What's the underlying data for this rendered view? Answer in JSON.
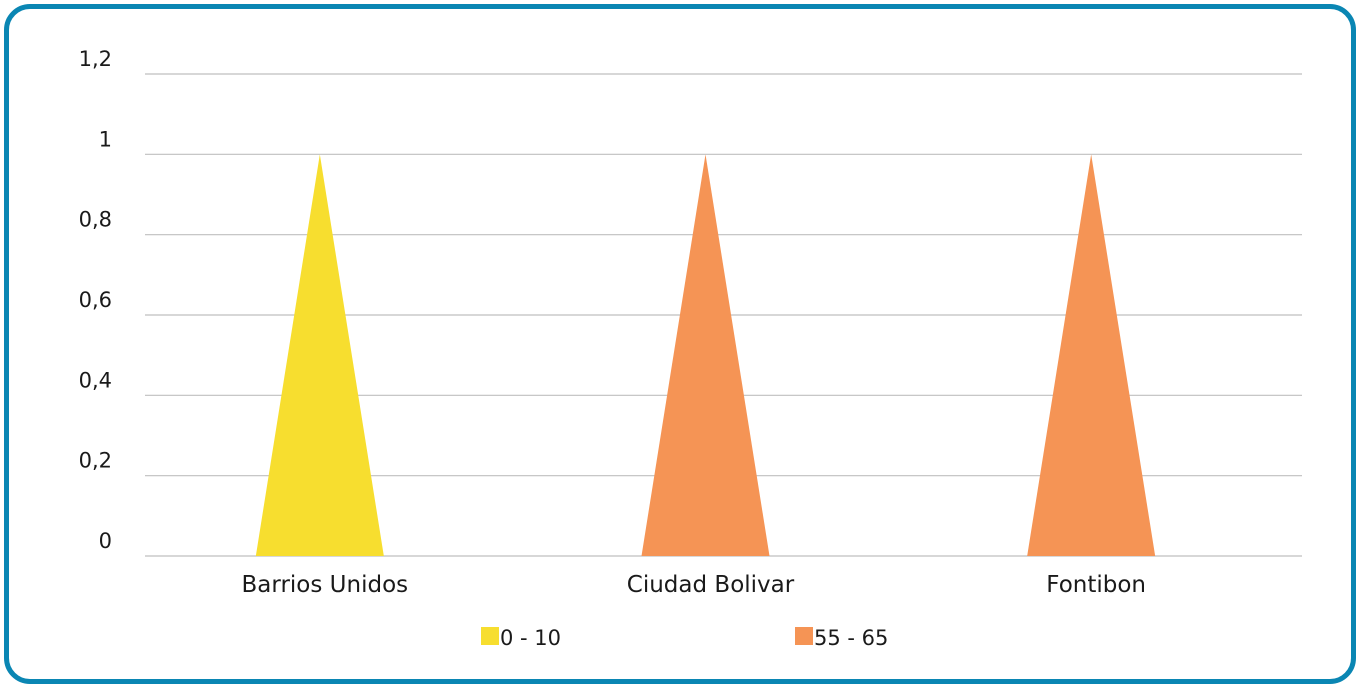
{
  "chart_data": {
    "type": "bar",
    "bar_shape": "pyramid",
    "categories": [
      "Barrios Unidos",
      "Ciudad Bolivar",
      "Fontibon"
    ],
    "values": [
      1,
      1,
      1
    ],
    "bar_series": [
      "0 - 10",
      "55 - 65",
      "55 - 65"
    ],
    "series": [
      {
        "name": "0 - 10",
        "color": "#f7de2f"
      },
      {
        "name": "55 - 65",
        "color": "#f59455"
      }
    ],
    "ylim": [
      0,
      1.2
    ],
    "yticks": [
      "0",
      "0,2",
      "0,4",
      "0,6",
      "0,8",
      "1",
      "1,2"
    ],
    "grid": true,
    "legend": "bottom",
    "title": "",
    "xlabel": "",
    "ylabel": ""
  },
  "colors": {
    "frame_border": "#0a86b3",
    "gridline": "#bfbfbf"
  }
}
